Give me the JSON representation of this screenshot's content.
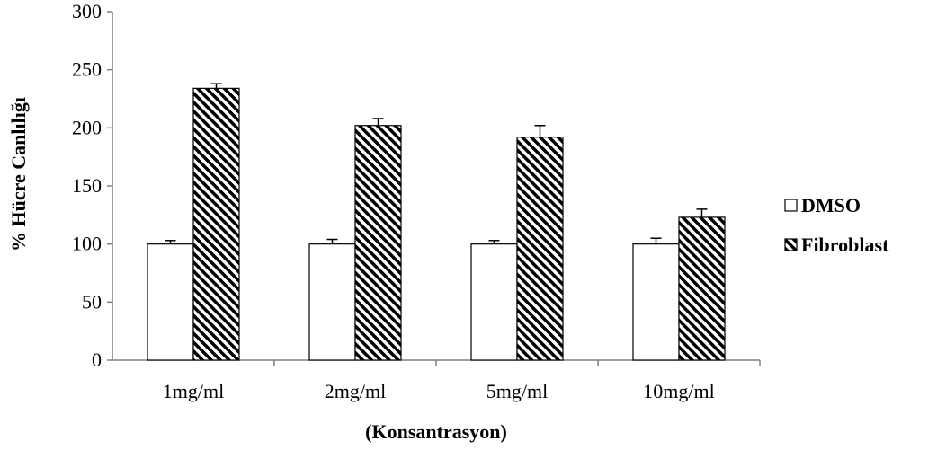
{
  "chart_data": {
    "type": "bar",
    "title": "",
    "xlabel": "(Konsantrasyon)",
    "ylabel": "% Hücre Canlılığı",
    "ylim": [
      0,
      300
    ],
    "yticks": [
      0,
      50,
      100,
      150,
      200,
      250,
      300
    ],
    "grid": false,
    "legend_position": "right",
    "categories": [
      "1mg/ml",
      "2mg/ml",
      "5mg/ml",
      "10mg/ml"
    ],
    "series": [
      {
        "name": "DMSO",
        "values": [
          100,
          100,
          100,
          100
        ],
        "errors": [
          3,
          4,
          3,
          5
        ],
        "fill": "white"
      },
      {
        "name": "Fibroblast",
        "values": [
          234,
          202,
          192,
          123
        ],
        "errors": [
          4,
          6,
          10,
          7
        ],
        "fill": "diagonal-hatch"
      }
    ]
  }
}
